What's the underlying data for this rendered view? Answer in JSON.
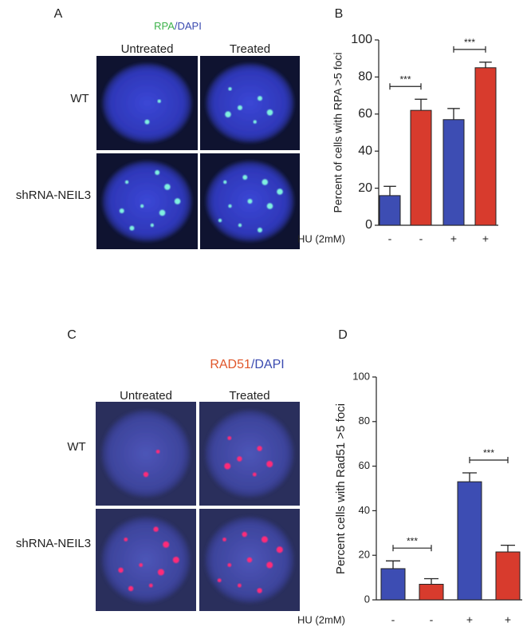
{
  "panels": [
    {
      "label": "A",
      "stain": [
        "RPA",
        "/DAPI"
      ],
      "columns": [
        "Untreated",
        "Treated"
      ],
      "rows": [
        "WT",
        "shRNA-NEIL3"
      ]
    },
    {
      "label": "C",
      "stain": [
        "RAD51",
        "/DAPI"
      ],
      "columns": [
        "Untreated",
        "Treated"
      ],
      "rows": [
        "WT",
        "shRNA-NEIL3"
      ]
    }
  ],
  "chart_data": [
    {
      "type": "bar",
      "label": "B",
      "y_label": "Percent of cells with RPA >5 foci",
      "x_label": "HU (2mM)",
      "categories": [
        "-",
        "-",
        "+",
        "+"
      ],
      "values": [
        16,
        62,
        57,
        85
      ],
      "errors": [
        5,
        6,
        6,
        3
      ],
      "colors": [
        "#3d4db3",
        "#d83b2d",
        "#3d4db3",
        "#d83b2d"
      ],
      "ylim": [
        0,
        100
      ],
      "yticks": [
        0,
        20,
        40,
        60,
        80,
        100
      ],
      "annotations": [
        "***",
        "***"
      ]
    },
    {
      "type": "bar",
      "label": "D",
      "y_label": "Percent  cells with Rad51 >5 foci",
      "x_label": "HU (2mM)",
      "categories": [
        "-",
        "-",
        "+",
        "+"
      ],
      "values": [
        14,
        7,
        53,
        21.5
      ],
      "errors": [
        3.5,
        2.5,
        4,
        3
      ],
      "colors": [
        "#3d4db3",
        "#d83b2d",
        "#3d4db3",
        "#d83b2d"
      ],
      "ylim": [
        0,
        100
      ],
      "yticks": [
        0,
        20,
        40,
        60,
        80,
        100
      ],
      "annotations": [
        "***",
        "***"
      ]
    }
  ]
}
